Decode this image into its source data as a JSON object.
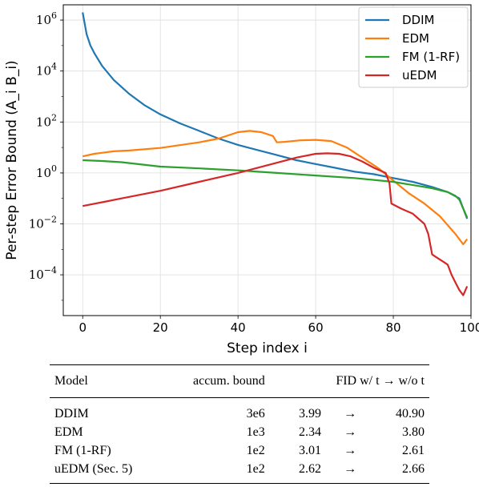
{
  "chart_data": {
    "type": "line",
    "ylabel": "Per-step Error Bound (A_i B_i)",
    "xlabel": "Step index i",
    "xlim": [
      -5,
      100
    ],
    "ylim_log10": [
      -5.6,
      6.6
    ],
    "yscale": "log",
    "grid": true,
    "legend": "top-right",
    "x_ticks": [
      "0",
      "20",
      "40",
      "60",
      "80",
      "100"
    ],
    "y_ticks": [
      "10^-4",
      "10^-2",
      "10^0",
      "10^2",
      "10^4",
      "10^6"
    ],
    "series": [
      {
        "name": "DDIM",
        "color": "#1f77b4",
        "points_log10": [
          [
            0,
            6.3
          ],
          [
            1,
            5.45
          ],
          [
            2,
            5.0
          ],
          [
            3,
            4.7
          ],
          [
            5,
            4.2
          ],
          [
            8,
            3.65
          ],
          [
            12,
            3.1
          ],
          [
            16,
            2.65
          ],
          [
            20,
            2.3
          ],
          [
            25,
            1.95
          ],
          [
            30,
            1.65
          ],
          [
            35,
            1.35
          ],
          [
            40,
            1.1
          ],
          [
            45,
            0.9
          ],
          [
            50,
            0.7
          ],
          [
            55,
            0.5
          ],
          [
            60,
            0.35
          ],
          [
            65,
            0.2
          ],
          [
            70,
            0.05
          ],
          [
            75,
            -0.05
          ],
          [
            80,
            -0.2
          ],
          [
            85,
            -0.35
          ],
          [
            90,
            -0.55
          ],
          [
            94,
            -0.75
          ],
          [
            97,
            -1.0
          ],
          [
            98,
            -1.4
          ],
          [
            99,
            -1.8
          ]
        ]
      },
      {
        "name": "EDM",
        "color": "#ff7f0e",
        "points_log10": [
          [
            0,
            0.65
          ],
          [
            3,
            0.75
          ],
          [
            8,
            0.85
          ],
          [
            12,
            0.88
          ],
          [
            20,
            0.98
          ],
          [
            30,
            1.2
          ],
          [
            35,
            1.35
          ],
          [
            40,
            1.6
          ],
          [
            43,
            1.65
          ],
          [
            46,
            1.6
          ],
          [
            49,
            1.45
          ],
          [
            50,
            1.2
          ],
          [
            52,
            1.22
          ],
          [
            56,
            1.28
          ],
          [
            60,
            1.3
          ],
          [
            64,
            1.25
          ],
          [
            68,
            1.0
          ],
          [
            72,
            0.6
          ],
          [
            76,
            0.2
          ],
          [
            80,
            -0.3
          ],
          [
            84,
            -0.8
          ],
          [
            88,
            -1.2
          ],
          [
            92,
            -1.7
          ],
          [
            96,
            -2.4
          ],
          [
            98,
            -2.8
          ],
          [
            99,
            -2.6
          ]
        ]
      },
      {
        "name": "FM (1-RF)",
        "color": "#2ca02c",
        "points_log10": [
          [
            0,
            0.5
          ],
          [
            5,
            0.47
          ],
          [
            10,
            0.42
          ],
          [
            20,
            0.25
          ],
          [
            30,
            0.18
          ],
          [
            40,
            0.1
          ],
          [
            50,
            0.0
          ],
          [
            60,
            -0.1
          ],
          [
            70,
            -0.2
          ],
          [
            80,
            -0.35
          ],
          [
            86,
            -0.5
          ],
          [
            90,
            -0.6
          ],
          [
            94,
            -0.75
          ],
          [
            96,
            -0.9
          ],
          [
            97,
            -1.05
          ],
          [
            98,
            -1.4
          ],
          [
            99,
            -1.75
          ]
        ]
      },
      {
        "name": "uEDM",
        "color": "#d62728",
        "points_log10": [
          [
            0,
            -1.3
          ],
          [
            5,
            -1.15
          ],
          [
            10,
            -1.0
          ],
          [
            20,
            -0.7
          ],
          [
            30,
            -0.35
          ],
          [
            40,
            0.0
          ],
          [
            50,
            0.4
          ],
          [
            55,
            0.6
          ],
          [
            60,
            0.75
          ],
          [
            63,
            0.77
          ],
          [
            66,
            0.75
          ],
          [
            69,
            0.65
          ],
          [
            72,
            0.45
          ],
          [
            75,
            0.2
          ],
          [
            78,
            0.0
          ],
          [
            79,
            -0.4
          ],
          [
            79.5,
            -1.2
          ],
          [
            82,
            -1.4
          ],
          [
            85,
            -1.6
          ],
          [
            88,
            -2.0
          ],
          [
            89,
            -2.4
          ],
          [
            90,
            -3.2
          ],
          [
            91,
            -3.3
          ],
          [
            93,
            -3.5
          ],
          [
            94,
            -3.6
          ],
          [
            95,
            -4.0
          ],
          [
            96,
            -4.3
          ],
          [
            97,
            -4.6
          ],
          [
            98,
            -4.8
          ],
          [
            99,
            -4.45
          ]
        ]
      }
    ]
  },
  "table": {
    "headers": {
      "model": "Model",
      "bound": "accum. bound",
      "fid": "FID w/ t → w/o t"
    },
    "rows": [
      {
        "model": "DDIM",
        "bound": "3e6",
        "fid_with": "3.99",
        "arrow": "→",
        "fid_without": "40.90"
      },
      {
        "model": "EDM",
        "bound": "1e3",
        "fid_with": "2.34",
        "arrow": "→",
        "fid_without": "3.80"
      },
      {
        "model": "FM (1-RF)",
        "bound": "1e2",
        "fid_with": "3.01",
        "arrow": "→",
        "fid_without": "2.61"
      },
      {
        "model": "uEDM (Sec. 5)",
        "bound": "1e2",
        "fid_with": "2.62",
        "arrow": "→",
        "fid_without": "2.66"
      }
    ]
  }
}
